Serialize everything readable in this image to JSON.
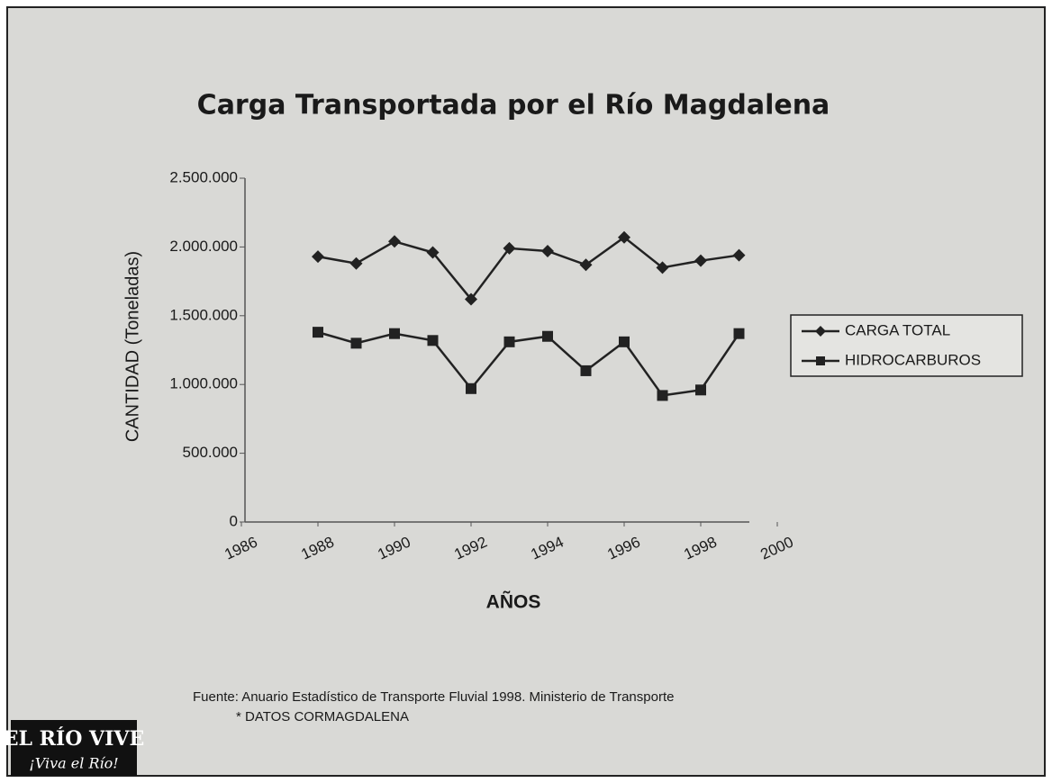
{
  "chart_data": {
    "type": "line",
    "title": "Carga Transportada por el Río Magdalena",
    "ylabel": "CANTIDAD (Toneladas)",
    "xlabel": "AÑOS",
    "x": [
      1988,
      1989,
      1990,
      1991,
      1992,
      1993,
      1994,
      1995,
      1996,
      1997,
      1998,
      1999
    ],
    "series": [
      {
        "name": "CARGA TOTAL",
        "color": "#222222",
        "marker": "diamond",
        "values": [
          1930000,
          1880000,
          2040000,
          1960000,
          1620000,
          1990000,
          1970000,
          1870000,
          2070000,
          1850000,
          1900000,
          1940000
        ]
      },
      {
        "name": "HIDROCARBUROS",
        "color": "#222222",
        "marker": "square",
        "values": [
          1380000,
          1300000,
          1370000,
          1320000,
          970000,
          1310000,
          1350000,
          1100000,
          1310000,
          920000,
          960000,
          1370000
        ]
      }
    ],
    "xlim": [
      1986,
      2000
    ],
    "xticks": [
      1986,
      1988,
      1990,
      1992,
      1994,
      1996,
      1998,
      2000
    ],
    "ylim": [
      0,
      2500000
    ],
    "yticks": [
      0,
      {
        "value": 500000,
        "label": "500.000"
      },
      {
        "value": 1000000,
        "label": "1.000.000"
      },
      {
        "value": 1500000,
        "label": "1.500.000"
      },
      {
        "value": 2000000,
        "label": "2.000.000"
      },
      {
        "value": 2500000,
        "label": "2.500.000"
      }
    ],
    "legend": "right",
    "source": "Fuente: Anuario Estadístico de Transporte Fluvial 1998. Ministerio de Transporte",
    "note": "* DATOS CORMAGDALENA",
    "logo": {
      "line1": "EL RÍO VIVE",
      "line2": "¡Viva el Río!"
    }
  }
}
